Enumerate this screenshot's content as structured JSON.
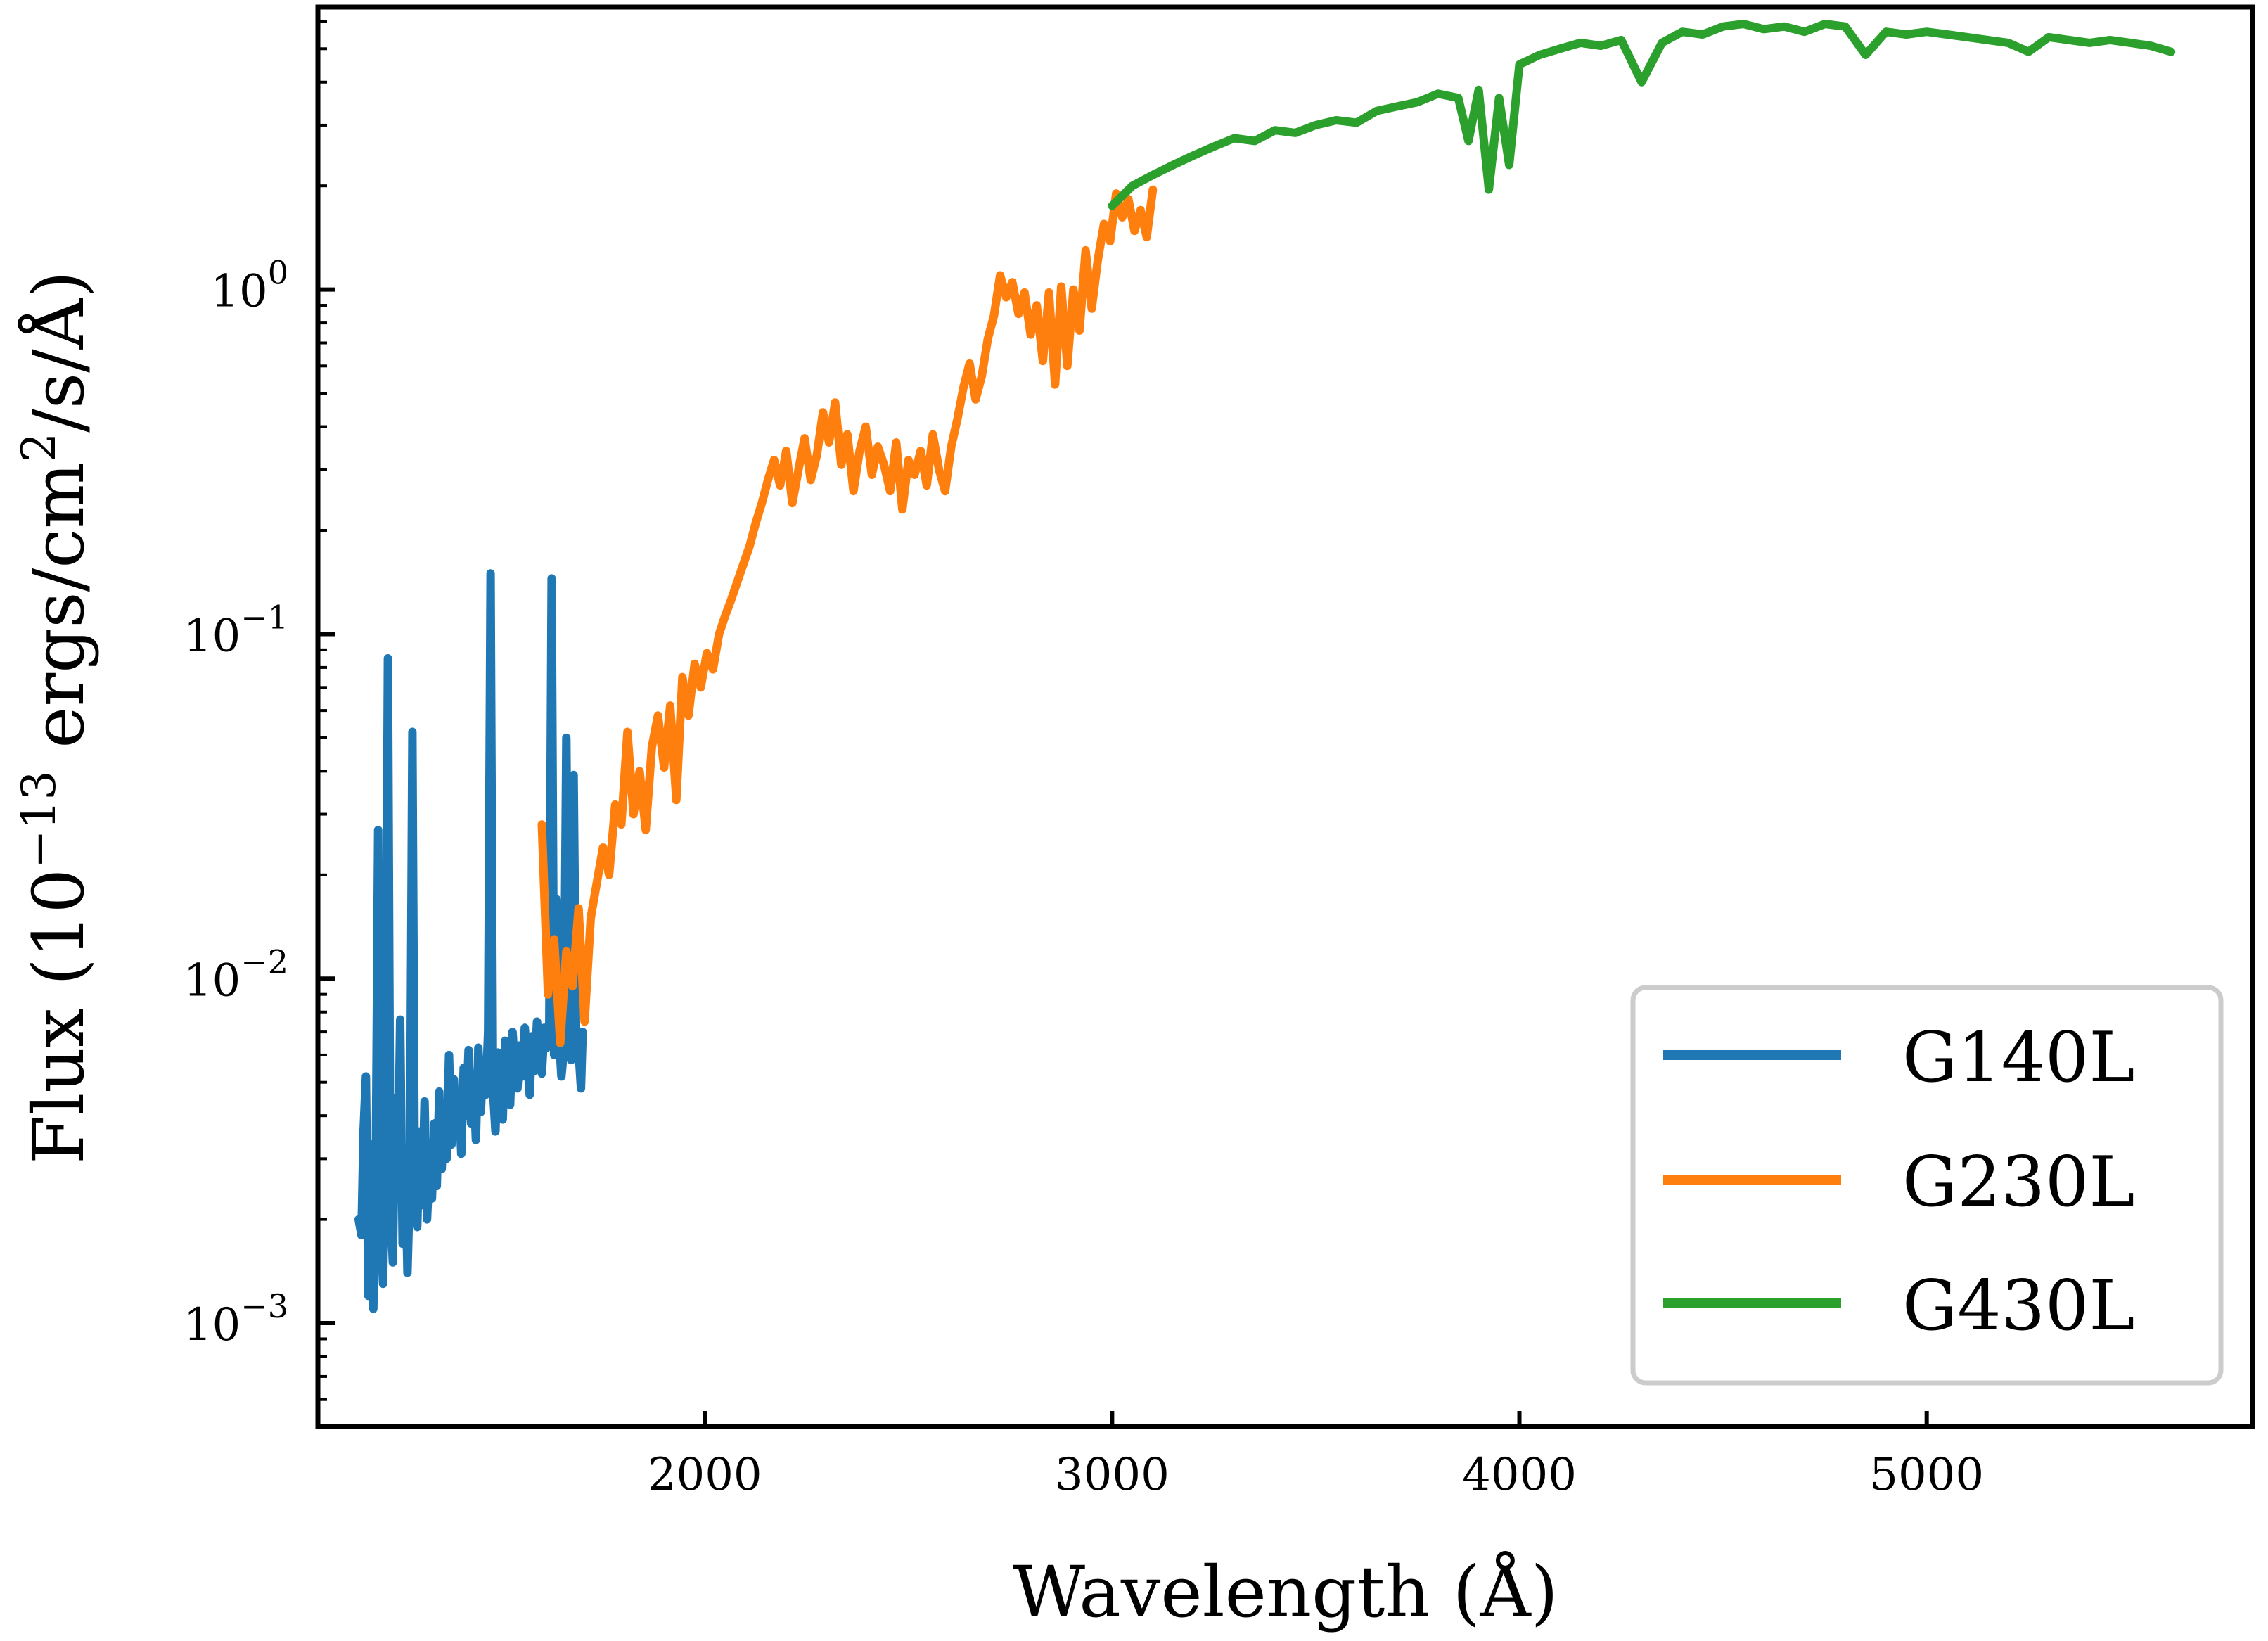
{
  "chart_data": {
    "type": "line",
    "title": "",
    "xlabel": "Wavelength (Å)",
    "ylabel_parts": {
      "pre": "Flux (10",
      "sup": "−13",
      "mid": " ergs/cm",
      "sup2": "2",
      "post": "/s/Å)"
    },
    "xlim": [
      1050,
      5800
    ],
    "ylim_log10": [
      -3.3,
      0.82
    ],
    "yscale": "log",
    "x_ticks": [
      {
        "value": 2000,
        "label": "2000"
      },
      {
        "value": 3000,
        "label": "3000"
      },
      {
        "value": 4000,
        "label": "4000"
      },
      {
        "value": 5000,
        "label": "5000"
      }
    ],
    "y_ticks": [
      {
        "exp": -3,
        "base": "10",
        "sup": "−3"
      },
      {
        "exp": -2,
        "base": "10",
        "sup": "−2"
      },
      {
        "exp": -1,
        "base": "10",
        "sup": "−1"
      },
      {
        "exp": 0,
        "base": "10",
        "sup": "0"
      }
    ],
    "legend_position": "lower-right",
    "series": [
      {
        "name": "G140L",
        "color": "#1f77b4",
        "x": [
          1150,
          1157,
          1162,
          1168,
          1174,
          1180,
          1186,
          1192,
          1198,
          1204,
          1210,
          1216,
          1222,
          1228,
          1234,
          1240,
          1246,
          1252,
          1258,
          1264,
          1270,
          1276,
          1282,
          1288,
          1294,
          1300,
          1306,
          1312,
          1318,
          1324,
          1330,
          1336,
          1342,
          1348,
          1354,
          1360,
          1366,
          1372,
          1378,
          1384,
          1390,
          1396,
          1402,
          1408,
          1414,
          1420,
          1426,
          1432,
          1438,
          1444,
          1450,
          1456,
          1462,
          1468,
          1474,
          1480,
          1486,
          1492,
          1498,
          1504,
          1510,
          1516,
          1522,
          1528,
          1534,
          1540,
          1546,
          1552,
          1558,
          1564,
          1570,
          1576,
          1582,
          1588,
          1594,
          1600,
          1606,
          1612,
          1618,
          1624,
          1630,
          1636,
          1642,
          1648,
          1654,
          1660,
          1666,
          1672,
          1678,
          1684,
          1690,
          1696,
          1700
        ],
        "y": [
          0.002,
          0.0018,
          0.0036,
          0.0052,
          0.0012,
          0.0033,
          0.0011,
          0.0026,
          0.027,
          0.0019,
          0.0013,
          0.0035,
          0.085,
          0.0022,
          0.0015,
          0.0045,
          0.0024,
          0.0076,
          0.0017,
          0.0031,
          0.0014,
          0.0026,
          0.052,
          0.0024,
          0.0019,
          0.0036,
          0.0022,
          0.0044,
          0.002,
          0.0029,
          0.0023,
          0.0038,
          0.0025,
          0.0047,
          0.0028,
          0.0042,
          0.003,
          0.006,
          0.0033,
          0.0051,
          0.0037,
          0.0045,
          0.0031,
          0.0055,
          0.004,
          0.0062,
          0.0038,
          0.0052,
          0.0034,
          0.0063,
          0.0041,
          0.0058,
          0.0046,
          0.007,
          0.15,
          0.0048,
          0.0036,
          0.0061,
          0.0044,
          0.0039,
          0.0066,
          0.005,
          0.0043,
          0.007,
          0.0055,
          0.0048,
          0.0064,
          0.0052,
          0.0072,
          0.0058,
          0.0046,
          0.0068,
          0.0054,
          0.0075,
          0.0062,
          0.0053,
          0.0072,
          0.0063,
          0.007,
          0.145,
          0.006,
          0.017,
          0.0068,
          0.0052,
          0.0062,
          0.05,
          0.0075,
          0.0058,
          0.039,
          0.0066,
          0.0062,
          0.0048,
          0.007
        ]
      },
      {
        "name": "G230L",
        "color": "#ff7f0e",
        "x": [
          1600,
          1615,
          1630,
          1645,
          1660,
          1675,
          1690,
          1705,
          1720,
          1735,
          1750,
          1765,
          1780,
          1795,
          1810,
          1825,
          1840,
          1855,
          1870,
          1885,
          1900,
          1915,
          1930,
          1945,
          1960,
          1975,
          1990,
          2005,
          2020,
          2035,
          2050,
          2065,
          2080,
          2095,
          2110,
          2125,
          2140,
          2155,
          2170,
          2185,
          2200,
          2215,
          2230,
          2245,
          2260,
          2275,
          2290,
          2305,
          2320,
          2335,
          2350,
          2365,
          2380,
          2395,
          2410,
          2425,
          2440,
          2455,
          2470,
          2485,
          2500,
          2515,
          2530,
          2545,
          2560,
          2575,
          2590,
          2605,
          2620,
          2635,
          2650,
          2665,
          2680,
          2695,
          2710,
          2725,
          2740,
          2755,
          2770,
          2785,
          2800,
          2815,
          2830,
          2845,
          2860,
          2875,
          2890,
          2905,
          2920,
          2935,
          2950,
          2965,
          2980,
          2995,
          3010,
          3025,
          3040,
          3055,
          3070,
          3085,
          3100
        ],
        "y": [
          0.028,
          0.009,
          0.013,
          0.0065,
          0.012,
          0.0095,
          0.016,
          0.0075,
          0.015,
          0.019,
          0.024,
          0.02,
          0.032,
          0.028,
          0.052,
          0.03,
          0.04,
          0.027,
          0.047,
          0.058,
          0.041,
          0.062,
          0.033,
          0.075,
          0.058,
          0.082,
          0.07,
          0.088,
          0.079,
          0.1,
          0.113,
          0.126,
          0.142,
          0.16,
          0.18,
          0.21,
          0.24,
          0.28,
          0.32,
          0.27,
          0.34,
          0.24,
          0.3,
          0.37,
          0.28,
          0.33,
          0.44,
          0.36,
          0.47,
          0.31,
          0.38,
          0.26,
          0.34,
          0.4,
          0.29,
          0.35,
          0.31,
          0.26,
          0.36,
          0.23,
          0.32,
          0.29,
          0.34,
          0.27,
          0.38,
          0.3,
          0.26,
          0.35,
          0.42,
          0.52,
          0.61,
          0.48,
          0.56,
          0.72,
          0.84,
          1.1,
          0.95,
          1.05,
          0.85,
          0.98,
          0.74,
          0.9,
          0.62,
          0.98,
          0.53,
          1.02,
          0.6,
          1.0,
          0.76,
          1.3,
          0.88,
          1.22,
          1.55,
          1.38,
          1.9,
          1.62,
          1.83,
          1.48,
          1.7,
          1.42,
          1.95
        ]
      },
      {
        "name": "G430L",
        "color": "#2ca02c",
        "x": [
          3000,
          3050,
          3100,
          3150,
          3200,
          3250,
          3300,
          3350,
          3400,
          3450,
          3500,
          3550,
          3600,
          3650,
          3700,
          3750,
          3800,
          3850,
          3875,
          3900,
          3925,
          3950,
          3975,
          4000,
          4050,
          4100,
          4150,
          4200,
          4250,
          4300,
          4350,
          4400,
          4450,
          4500,
          4550,
          4600,
          4650,
          4700,
          4750,
          4800,
          4850,
          4900,
          4950,
          5000,
          5050,
          5100,
          5150,
          5200,
          5250,
          5300,
          5350,
          5400,
          5450,
          5500,
          5550,
          5600
        ],
        "y": [
          1.75,
          2.0,
          2.15,
          2.3,
          2.45,
          2.6,
          2.75,
          2.7,
          2.9,
          2.85,
          3.0,
          3.1,
          3.05,
          3.3,
          3.4,
          3.5,
          3.7,
          3.6,
          2.7,
          3.8,
          1.95,
          3.6,
          2.3,
          4.5,
          4.8,
          5.0,
          5.2,
          5.1,
          5.3,
          4.0,
          5.2,
          5.6,
          5.5,
          5.8,
          5.9,
          5.7,
          5.8,
          5.6,
          5.9,
          5.8,
          4.8,
          5.6,
          5.5,
          5.6,
          5.5,
          5.4,
          5.3,
          5.2,
          4.9,
          5.4,
          5.3,
          5.2,
          5.3,
          5.2,
          5.1,
          4.9
        ]
      }
    ]
  }
}
